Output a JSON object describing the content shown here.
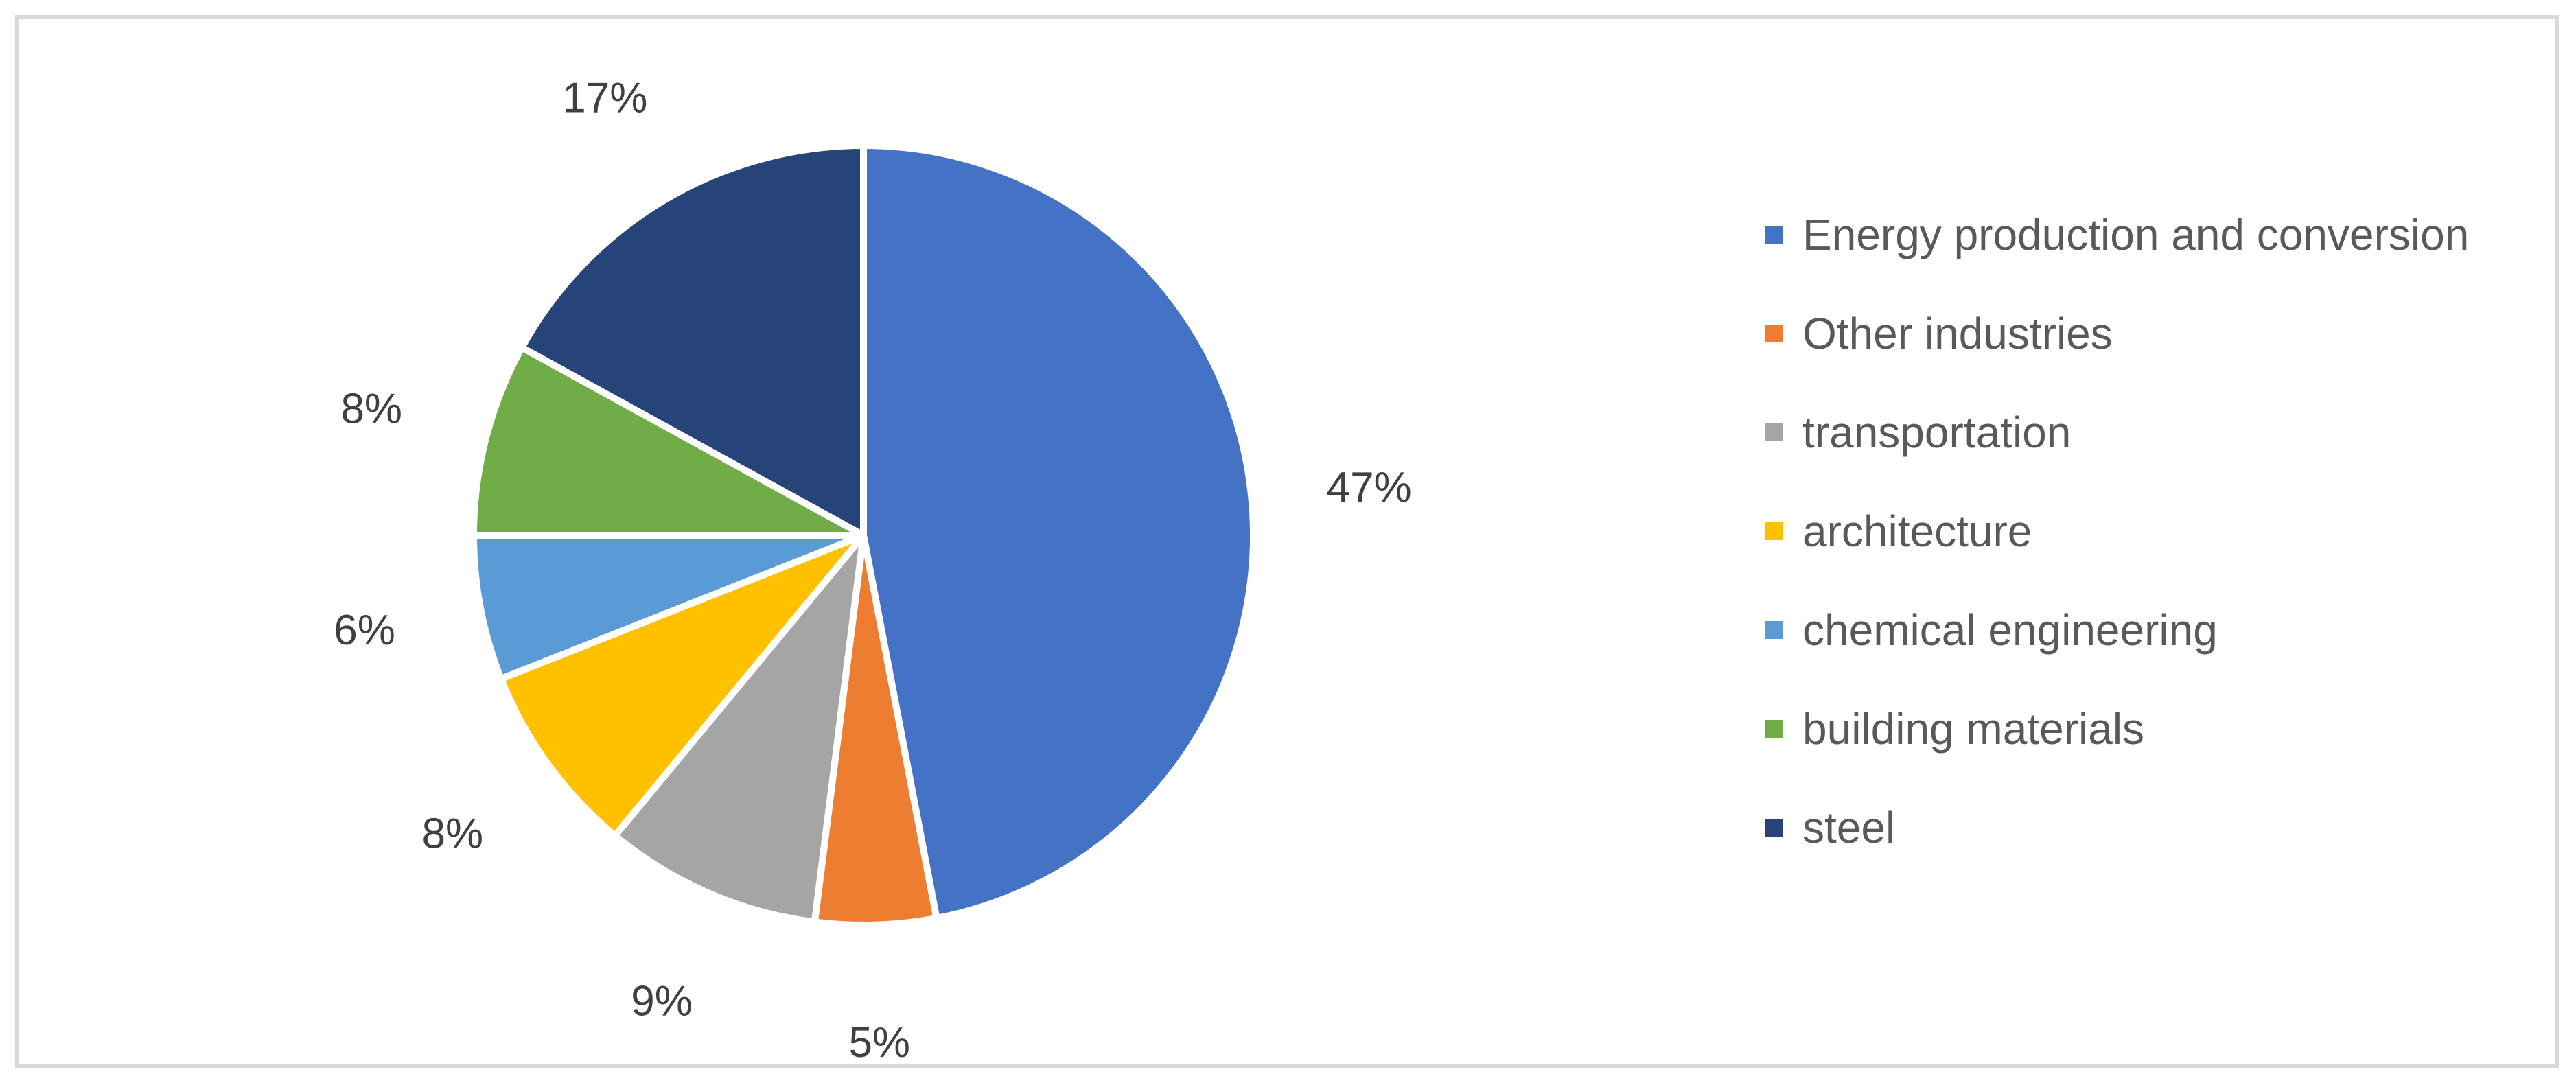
{
  "chart_data": {
    "type": "pie",
    "title": "",
    "categories": [
      "Energy production and conversion",
      "Other industries",
      "transportation",
      "architecture",
      "chemical engineering",
      "building materials",
      "steel"
    ],
    "values": [
      47,
      5,
      9,
      8,
      6,
      8,
      17
    ],
    "data_labels": [
      "47%",
      "5%",
      "9%",
      "8%",
      "6%",
      "8%",
      "17%"
    ],
    "colors": [
      "#4472c4",
      "#ed7d31",
      "#a5a5a5",
      "#ffc000",
      "#5b9bd5",
      "#70ad47",
      "#264478"
    ],
    "start_angle_deg": 0,
    "direction": "clockwise",
    "legend_position": "right"
  }
}
